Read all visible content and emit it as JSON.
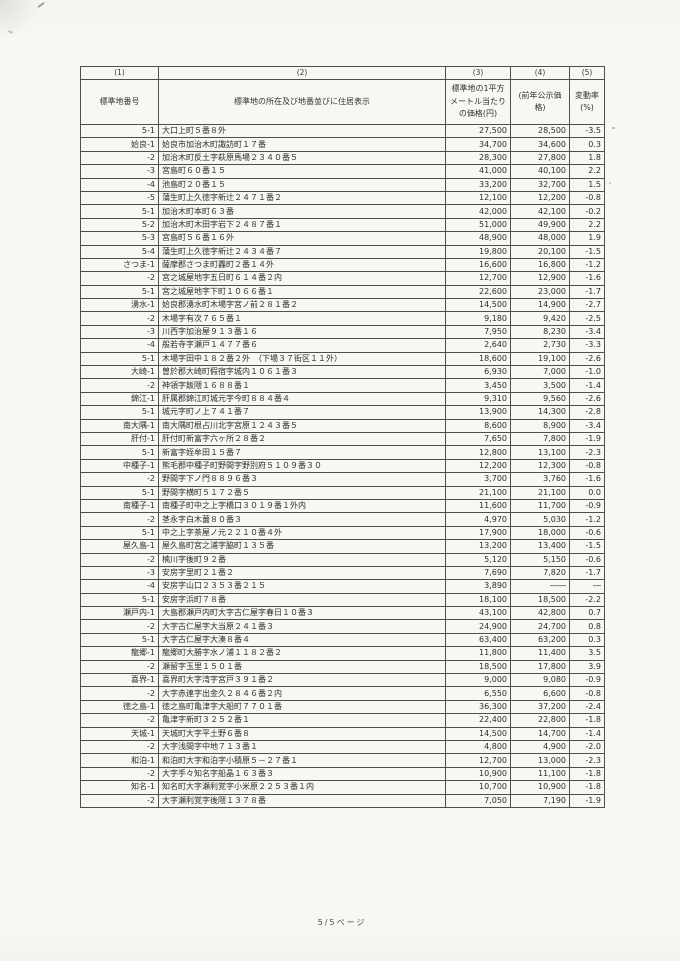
{
  "document": {
    "footer": "5/5ページ"
  },
  "table": {
    "col_numbers": {
      "c1": "(1)",
      "c2": "(2)",
      "c3": "(3)",
      "c4": "(4)",
      "c5": "(5)"
    },
    "headers": {
      "no": "標準地番号",
      "location": "標準地の所在及び地番並びに住居表示",
      "price": "標準地の1平方\nメートル当たり\nの価格(円)",
      "prev": "(前年公示価格)",
      "rate": "変動率(%)"
    },
    "rows": [
      {
        "no": "5-1",
        "location": "大口上町５番８外",
        "price": "27,500",
        "prev": "28,500",
        "rate": "-3.5"
      },
      {
        "no": "姶良-1",
        "location": "姶良市加治木町諏訪町１７番",
        "price": "34,700",
        "prev": "34,600",
        "rate": "0.3"
      },
      {
        "no": "-2",
        "location": "加治木町反土字萩原馬場２３４０番５",
        "price": "28,300",
        "prev": "27,800",
        "rate": "1.8"
      },
      {
        "no": "-3",
        "location": "宮島町６０番１５",
        "price": "41,000",
        "prev": "40,100",
        "rate": "2.2"
      },
      {
        "no": "-4",
        "location": "池島町２０番１５",
        "price": "33,200",
        "prev": "32,700",
        "rate": "1.5"
      },
      {
        "no": "-5",
        "location": "蒲生町上久徳字新辻２４７１番２",
        "price": "12,100",
        "prev": "12,200",
        "rate": "-0.8"
      },
      {
        "no": "5-1",
        "location": "加治木町本町６３番",
        "price": "42,000",
        "prev": "42,100",
        "rate": "-0.2"
      },
      {
        "no": "5-2",
        "location": "加治木町木田字岩下２４８７番１",
        "price": "51,000",
        "prev": "49,900",
        "rate": "2.2"
      },
      {
        "no": "5-3",
        "location": "宮島町５６番１６外",
        "price": "48,900",
        "prev": "48,000",
        "rate": "1.9"
      },
      {
        "no": "5-4",
        "location": "蒲生町上久徳字新辻２４３４番７",
        "price": "19,800",
        "prev": "20,100",
        "rate": "-1.5"
      },
      {
        "no": "さつま-1",
        "location": "薩摩郡さつま町轟町２番１４外",
        "price": "16,600",
        "prev": "16,800",
        "rate": "-1.2"
      },
      {
        "no": "-2",
        "location": "宮之城屋地字五日町６１４番２内",
        "price": "12,700",
        "prev": "12,900",
        "rate": "-1.6"
      },
      {
        "no": "5-1",
        "location": "宮之城屋地字下町１０６６番１",
        "price": "22,600",
        "prev": "23,000",
        "rate": "-1.7"
      },
      {
        "no": "湧水-1",
        "location": "姶良郡湧水町木場字宮ノ前２８１番２",
        "price": "14,500",
        "prev": "14,900",
        "rate": "-2.7"
      },
      {
        "no": "-2",
        "location": "木場字有次７６５番１",
        "price": "9,180",
        "prev": "9,420",
        "rate": "-2.5"
      },
      {
        "no": "-3",
        "location": "川西字加治屋９１３番１６",
        "price": "7,950",
        "prev": "8,230",
        "rate": "-3.4"
      },
      {
        "no": "-4",
        "location": "般若寺字瀬戸１４７７番６",
        "price": "2,640",
        "prev": "2,730",
        "rate": "-3.3"
      },
      {
        "no": "5-1",
        "location": "木場字田中１８２番２外　（下場３７街区１１外）",
        "price": "18,600",
        "prev": "19,100",
        "rate": "-2.6"
      },
      {
        "no": "大崎-1",
        "location": "曽於郡大崎町假宿字城内１０６１番３",
        "price": "6,930",
        "prev": "7,000",
        "rate": "-1.0"
      },
      {
        "no": "-2",
        "location": "神領字飯隈１６８８番１",
        "price": "3,450",
        "prev": "3,500",
        "rate": "-1.4"
      },
      {
        "no": "錦江-1",
        "location": "肝属郡錦江町城元字今町８８４番４",
        "price": "9,310",
        "prev": "9,560",
        "rate": "-2.6"
      },
      {
        "no": "5-1",
        "location": "城元字町ノ上７４１番７",
        "price": "13,900",
        "prev": "14,300",
        "rate": "-2.8"
      },
      {
        "no": "南大隅-1",
        "location": "南大隅町根占川北字宮原１２４３番５",
        "price": "8,600",
        "prev": "8,900",
        "rate": "-3.4"
      },
      {
        "no": "肝付-1",
        "location": "肝付町新富字六ヶ所２８番２",
        "price": "7,650",
        "prev": "7,800",
        "rate": "-1.9"
      },
      {
        "no": "5-1",
        "location": "新富字姪牟田１５番７",
        "price": "12,800",
        "prev": "13,100",
        "rate": "-2.3"
      },
      {
        "no": "中種子-1",
        "location": "熊毛郡中種子町野間字野別府５１０９番３０",
        "price": "12,200",
        "prev": "12,300",
        "rate": "-0.8"
      },
      {
        "no": "-2",
        "location": "野間字下ノ門８８９６番３",
        "price": "3,700",
        "prev": "3,760",
        "rate": "-1.6"
      },
      {
        "no": "5-1",
        "location": "野間字横町５１７２番５",
        "price": "21,100",
        "prev": "21,100",
        "rate": "0.0"
      },
      {
        "no": "南種子-1",
        "location": "南種子町中之上字橋口３０１９番１外内",
        "price": "11,600",
        "prev": "11,700",
        "rate": "-0.9"
      },
      {
        "no": "-2",
        "location": "茎永字白木薗８０番３",
        "price": "4,970",
        "prev": "5,030",
        "rate": "-1.2"
      },
      {
        "no": "5-1",
        "location": "中之上字茶屋ノ元２２１０番４外",
        "price": "17,900",
        "prev": "18,000",
        "rate": "-0.6"
      },
      {
        "no": "屋久島-1",
        "location": "屋久島町宮之浦字脇町１３５番",
        "price": "13,200",
        "prev": "13,400",
        "rate": "-1.5"
      },
      {
        "no": "-2",
        "location": "楠川字後町９２番",
        "price": "5,120",
        "prev": "5,150",
        "rate": "-0.6"
      },
      {
        "no": "-3",
        "location": "安房字里町２１番２",
        "price": "7,690",
        "prev": "7,820",
        "rate": "-1.7"
      },
      {
        "no": "-4",
        "location": "安房字山口２３５３番２１５",
        "price": "3,890",
        "prev": "――",
        "rate": "―"
      },
      {
        "no": "5-1",
        "location": "安房字浜町７８番",
        "price": "18,100",
        "prev": "18,500",
        "rate": "-2.2"
      },
      {
        "no": "瀬戸内-1",
        "location": "大島郡瀬戸内町大字古仁屋字春日１０番３",
        "price": "43,100",
        "prev": "42,800",
        "rate": "0.7"
      },
      {
        "no": "-2",
        "location": "大字古仁屋字大当原２４１番３",
        "price": "24,900",
        "prev": "24,700",
        "rate": "0.8"
      },
      {
        "no": "5-1",
        "location": "大字古仁屋字大湊８番４",
        "price": "63,400",
        "prev": "63,200",
        "rate": "0.3"
      },
      {
        "no": "龍郷-1",
        "location": "龍郷町大勝字水ノ浦１１８２番２",
        "price": "11,800",
        "prev": "11,400",
        "rate": "3.5"
      },
      {
        "no": "-2",
        "location": "瀬留字玉里１５０１番",
        "price": "18,500",
        "prev": "17,800",
        "rate": "3.9"
      },
      {
        "no": "喜界-1",
        "location": "喜界町大字湾字宮戸３９１番２",
        "price": "9,000",
        "prev": "9,080",
        "rate": "-0.9"
      },
      {
        "no": "-2",
        "location": "大字赤連字出金久２８４６番２内",
        "price": "6,550",
        "prev": "6,600",
        "rate": "-0.8"
      },
      {
        "no": "徳之島-1",
        "location": "徳之島町亀津字大船町７７０１番",
        "price": "36,300",
        "prev": "37,200",
        "rate": "-2.4"
      },
      {
        "no": "-2",
        "location": "亀津字新町３２５２番１",
        "price": "22,400",
        "prev": "22,800",
        "rate": "-1.8"
      },
      {
        "no": "天城-1",
        "location": "天城町大字平土野６番８",
        "price": "14,500",
        "prev": "14,700",
        "rate": "-1.4"
      },
      {
        "no": "-2",
        "location": "大字浅間字中地７１３番１",
        "price": "4,800",
        "prev": "4,900",
        "rate": "-2.0"
      },
      {
        "no": "和泊-1",
        "location": "和泊町大字和泊字小積原５－２７番１",
        "price": "12,700",
        "prev": "13,000",
        "rate": "-2.3"
      },
      {
        "no": "-2",
        "location": "大字手々知名字船晶１６３番３",
        "price": "10,900",
        "prev": "11,100",
        "rate": "-1.8"
      },
      {
        "no": "知名-1",
        "location": "知名町大字瀬利覚字小米原２２５３番１内",
        "price": "10,700",
        "prev": "10,900",
        "rate": "-1.8"
      },
      {
        "no": "-2",
        "location": "大字瀬利覚字後隈１３７８番",
        "price": "7,050",
        "prev": "7,190",
        "rate": "-1.9"
      }
    ]
  }
}
